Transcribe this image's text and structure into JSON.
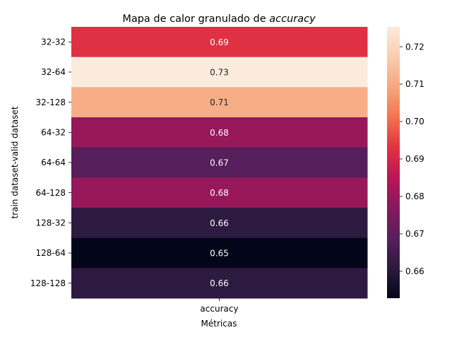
{
  "chart_data": {
    "type": "heatmap",
    "title_prefix": "Mapa de calor granulado de ",
    "title_emphasis": "accuracy",
    "xlabel": "Métricas",
    "ylabel": "train dataset-valid dataset",
    "columns": [
      "accuracy"
    ],
    "rows": [
      "32-32",
      "32-64",
      "32-128",
      "64-32",
      "64-64",
      "64-128",
      "128-32",
      "128-64",
      "128-128"
    ],
    "values": [
      [
        0.6925
      ],
      [
        0.7253
      ],
      [
        0.7108
      ],
      [
        0.6795
      ],
      [
        0.6683
      ],
      [
        0.6795
      ],
      [
        0.6612
      ],
      [
        0.6528
      ],
      [
        0.6612
      ]
    ],
    "cell_labels": [
      "0.69",
      "0.73",
      "0.71",
      "0.68",
      "0.67",
      "0.68",
      "0.66",
      "0.65",
      "0.66"
    ],
    "colorbar": {
      "min": 0.6528,
      "max": 0.7253,
      "ticks": [
        0.66,
        0.67,
        0.68,
        0.69,
        0.7,
        0.71,
        0.72
      ],
      "tick_labels": [
        "0.66",
        "0.67",
        "0.68",
        "0.69",
        "0.70",
        "0.71",
        "0.72"
      ]
    },
    "colormap": "rocket",
    "colormap_stops": [
      "#03051a",
      "#2b1a3f",
      "#5a1e5c",
      "#86195c",
      "#b91657",
      "#e13342",
      "#f3734f",
      "#f6a67c",
      "#f9cdb0",
      "#faebdd"
    ],
    "grid": false,
    "legend": "none"
  }
}
